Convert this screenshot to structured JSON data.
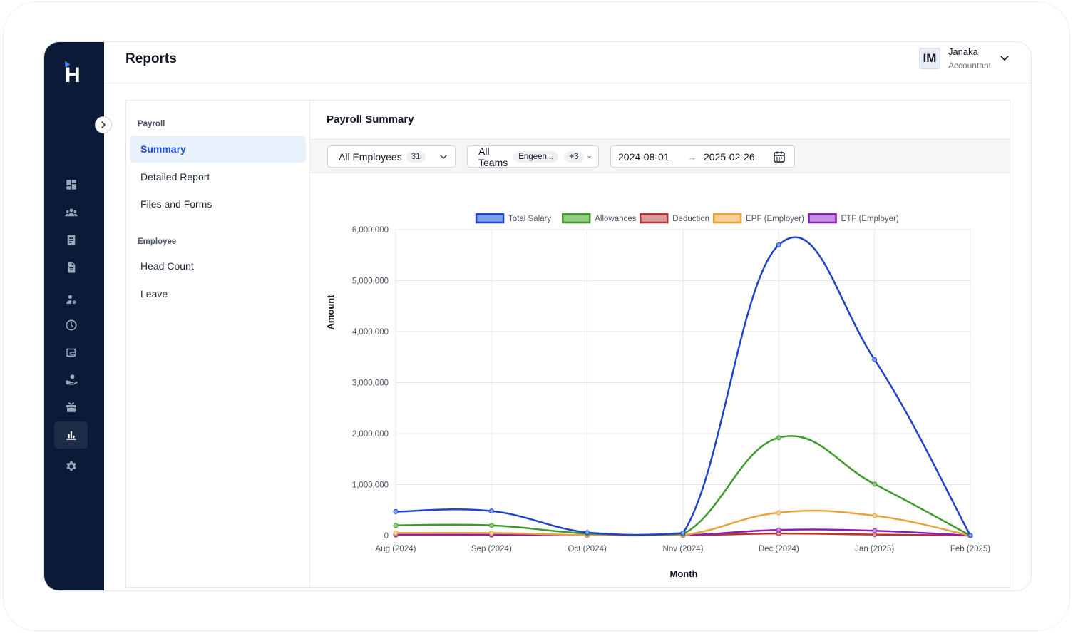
{
  "app": {
    "logo_letter": "H",
    "page_title": "Reports"
  },
  "sidebar": {
    "icons": [
      "dashboard-icon",
      "people-icon",
      "receipt-icon",
      "document-icon",
      "user-settings-icon",
      "clock-icon",
      "wallet-icon",
      "payout-icon",
      "gift-icon",
      "reports-icon",
      "settings-icon"
    ],
    "active_icon": "reports-icon"
  },
  "user": {
    "initials": "IM",
    "name": "Janaka",
    "role": "Accountant"
  },
  "report_menu": {
    "payroll_section": "Payroll",
    "payroll_items": [
      "Summary",
      "Detailed Report",
      "Files and Forms"
    ],
    "employee_section": "Employee",
    "employee_items": [
      "Head Count",
      "Leave"
    ],
    "active_item": "Summary"
  },
  "panel": {
    "title": "Payroll Summary"
  },
  "filters": {
    "employees_label": "All Employees",
    "employees_count": "31",
    "teams_label": "All Teams",
    "teams_tag": "Engeen...",
    "teams_more": "+3",
    "date_start": "2024-08-01",
    "date_end": "2025-02-26",
    "date_separator": "→"
  },
  "chart_data": {
    "type": "line",
    "categories": [
      "Aug (2024)",
      "Sep (2024)",
      "Oct (2024)",
      "Nov (2024)",
      "Dec (2024)",
      "Jan (2025)",
      "Feb (2025)"
    ],
    "ylim": [
      0,
      6000000
    ],
    "yticks": [
      0,
      1000000,
      2000000,
      3000000,
      4000000,
      5000000,
      6000000
    ],
    "ytick_labels": [
      "0",
      "1,000,000",
      "2,000,000",
      "3,000,000",
      "4,000,000",
      "5,000,000",
      "6,000,000"
    ],
    "xlabel": "Month",
    "ylabel": "Amount",
    "grid": true,
    "legend_position": "top",
    "series": [
      {
        "name": "Total Salary",
        "color": "#1f44c9",
        "fill": "#7fa0ee",
        "values": [
          470000,
          480000,
          60000,
          50000,
          5700000,
          3450000,
          0
        ]
      },
      {
        "name": "Allowances",
        "color": "#3e9a2b",
        "fill": "#93cc83",
        "values": [
          200000,
          200000,
          40000,
          30000,
          1920000,
          1010000,
          0
        ]
      },
      {
        "name": "Deduction",
        "color": "#b83232",
        "fill": "#d99a9a",
        "values": [
          10000,
          10000,
          5000,
          5000,
          40000,
          20000,
          0
        ]
      },
      {
        "name": "EPF (Employer)",
        "color": "#e9a23b",
        "fill": "#f5cf95",
        "values": [
          50000,
          50000,
          10000,
          10000,
          450000,
          390000,
          0
        ]
      },
      {
        "name": "ETF (Employer)",
        "color": "#8a1fb6",
        "fill": "#c48ee0",
        "values": [
          15000,
          15000,
          5000,
          5000,
          110000,
          95000,
          0
        ]
      }
    ]
  }
}
